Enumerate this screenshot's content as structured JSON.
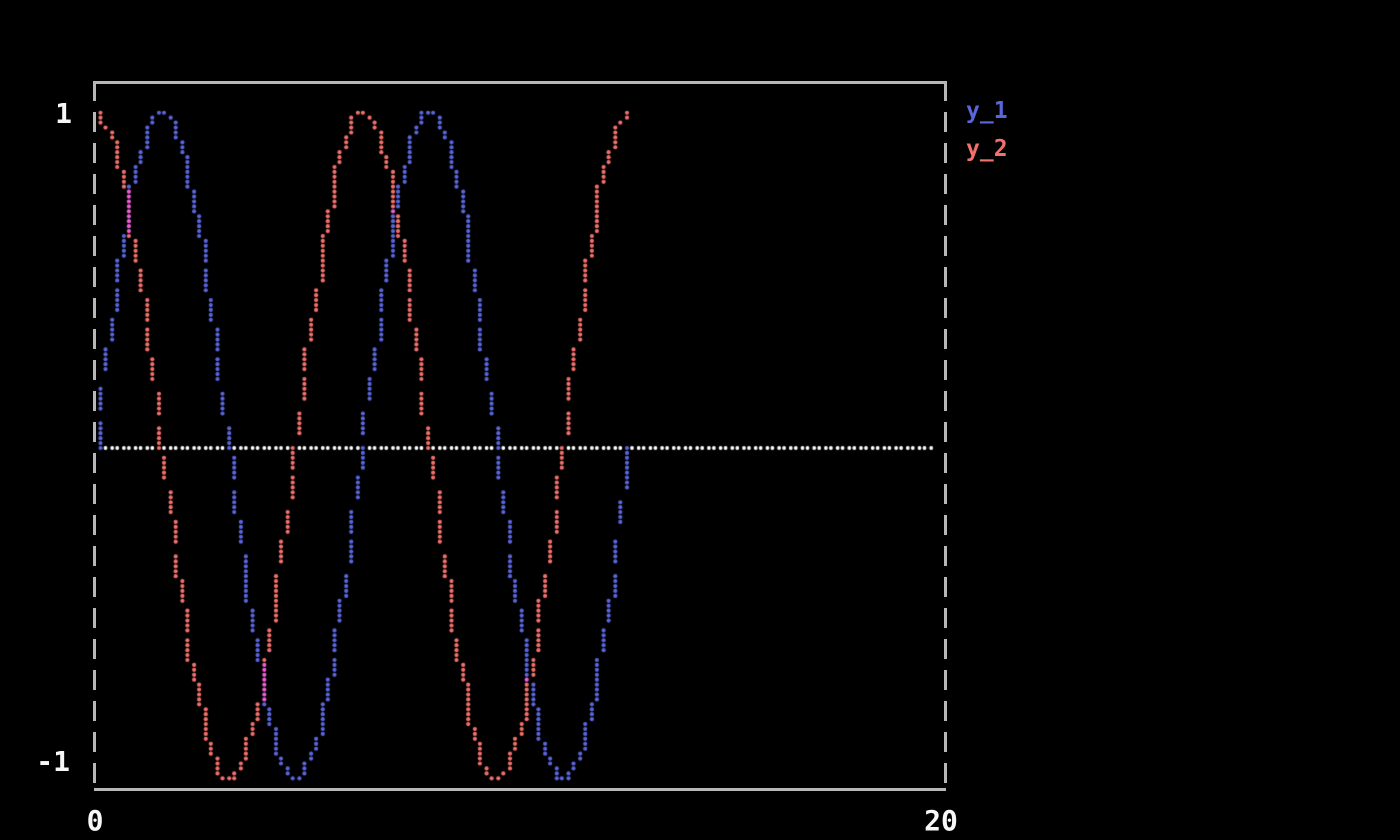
{
  "window": {
    "background": "#000000"
  },
  "chart_data": {
    "type": "line",
    "title": "",
    "xlabel": "",
    "ylabel": "",
    "xlim": [
      0,
      20
    ],
    "ylim": [
      -1,
      1
    ],
    "grid": false,
    "legend_position": "outside-top-right",
    "frame_style": "solid top/bottom, dashed left/right",
    "frame_color": "#b7b7b7",
    "tick_color": "#f7f7f7",
    "overlap_color": "#ee5fd6",
    "marker_style": "terminal-braille-dots",
    "x_ticks": [
      "0",
      "20"
    ],
    "y_ticks": [
      "1",
      "-1"
    ],
    "zero_line": {
      "y": 0,
      "style": "dotted",
      "color": "#ffffff",
      "x_start": 0,
      "x_end": 20
    },
    "x": [
      0,
      0.3927,
      0.7854,
      1.1781,
      1.5708,
      1.9635,
      2.3562,
      2.7489,
      3.1416,
      3.5343,
      3.927,
      4.3197,
      4.7124,
      5.1051,
      5.4978,
      5.8905,
      6.2832,
      6.6759,
      7.0686,
      7.4613,
      7.854,
      8.2467,
      8.6394,
      9.0321,
      9.4248,
      9.8175,
      10.2102,
      10.6029,
      10.9956,
      11.3883,
      11.781,
      12.1737,
      12.5664
    ],
    "series": [
      {
        "name": "y_1",
        "color": "#5a66dc",
        "values": [
          0,
          0.3827,
          0.7071,
          0.9239,
          1,
          0.9239,
          0.7071,
          0.3827,
          0,
          -0.3827,
          -0.7071,
          -0.9239,
          -1,
          -0.9239,
          -0.7071,
          -0.3827,
          0,
          0.3827,
          0.7071,
          0.9239,
          1,
          0.9239,
          0.7071,
          0.3827,
          0,
          -0.3827,
          -0.7071,
          -0.9239,
          -1,
          -0.9239,
          -0.7071,
          -0.3827,
          0
        ]
      },
      {
        "name": "y_2",
        "color": "#f2716c",
        "values": [
          1,
          0.9239,
          0.7071,
          0.3827,
          0,
          -0.3827,
          -0.7071,
          -0.9239,
          -1,
          -0.9239,
          -0.7071,
          -0.3827,
          0,
          0.3827,
          0.7071,
          0.9239,
          1,
          0.9239,
          0.7071,
          0.3827,
          0,
          -0.3827,
          -0.7071,
          -0.9239,
          -1,
          -0.9239,
          -0.7071,
          -0.3827,
          0,
          0.3827,
          0.7071,
          0.9239,
          1
        ]
      }
    ]
  }
}
